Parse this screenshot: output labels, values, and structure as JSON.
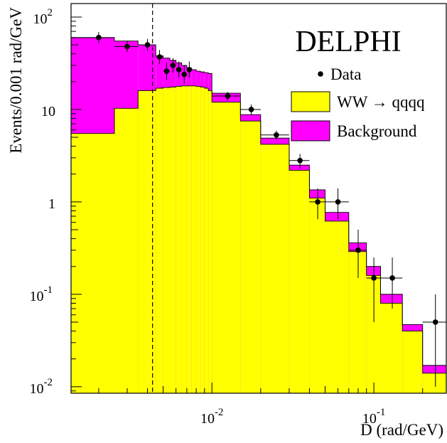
{
  "chart_data": {
    "type": "histogram",
    "experiment_label": "DELPHI",
    "xlabel": "D (rad/GeV)",
    "ylabel": "Events/0.001 rad/GeV",
    "x_scale": "log",
    "y_scale": "log",
    "xlim": [
      0.00135,
      0.28
    ],
    "ylim": [
      0.0085,
      140
    ],
    "grid": false,
    "legend_position": "top-right",
    "x_ticks": [
      {
        "value": 0.01,
        "base": "10",
        "exp": "-2"
      },
      {
        "value": 0.1,
        "base": "10",
        "exp": "-1"
      }
    ],
    "y_ticks": [
      {
        "value": 100,
        "base": "10",
        "exp": "2"
      },
      {
        "value": 10,
        "base": "10",
        "exp": ""
      },
      {
        "value": 1,
        "base": "1",
        "exp": ""
      },
      {
        "value": 0.1,
        "base": "10",
        "exp": "-1"
      },
      {
        "value": 0.01,
        "base": "10",
        "exp": "-2"
      }
    ],
    "cut_line_x": 0.0043,
    "bin_edges": [
      0.00135,
      0.0025,
      0.0035,
      0.0045,
      0.005,
      0.0055,
      0.006,
      0.0065,
      0.007,
      0.0075,
      0.008,
      0.0085,
      0.009,
      0.0095,
      0.01,
      0.015,
      0.02,
      0.03,
      0.04,
      0.05,
      0.07,
      0.09,
      0.11,
      0.15,
      0.2,
      0.28
    ],
    "series": [
      {
        "name": "WW → qqqq",
        "color": "#ffff00",
        "values": [
          5.5,
          10.3,
          16,
          17,
          17.3,
          17.5,
          17.8,
          18,
          18,
          18,
          17.8,
          17.5,
          17,
          16,
          12,
          7.5,
          4.2,
          2.2,
          1.1,
          0.62,
          0.29,
          0.16,
          0.08,
          0.04,
          0.014
        ]
      },
      {
        "name": "Background",
        "color": "#ff00ff",
        "values": [
          60,
          55,
          50,
          38,
          36,
          34,
          32,
          30,
          28,
          27,
          26,
          25.5,
          25,
          24.5,
          15,
          8.8,
          4.9,
          2.5,
          1.35,
          0.77,
          0.36,
          0.2,
          0.1,
          0.047,
          0.017
        ]
      }
    ],
    "data_points": {
      "name": "Data",
      "color": "#000000",
      "points": [
        {
          "x": 0.002,
          "y": 60,
          "xerr": [
            0.00065,
            0.0005
          ],
          "yerr": [
            8,
            9
          ]
        },
        {
          "x": 0.003,
          "y": 48,
          "xerr": [
            0.0005,
            0.0005
          ],
          "yerr": [
            6,
            7
          ]
        },
        {
          "x": 0.004,
          "y": 50,
          "xerr": [
            0.0005,
            0.0005
          ],
          "yerr": [
            7,
            8
          ]
        },
        {
          "x": 0.00475,
          "y": 37,
          "xerr": [
            0.00025,
            0.00025
          ],
          "yerr": [
            6,
            7
          ]
        },
        {
          "x": 0.00525,
          "y": 26,
          "xerr": [
            0.00025,
            0.00025
          ],
          "yerr": [
            5,
            6
          ]
        },
        {
          "x": 0.00575,
          "y": 30,
          "xerr": [
            0.00025,
            0.00025
          ],
          "yerr": [
            5,
            6
          ]
        },
        {
          "x": 0.00625,
          "y": 27,
          "xerr": [
            0.00025,
            0.00025
          ],
          "yerr": [
            5,
            6
          ]
        },
        {
          "x": 0.00675,
          "y": 24,
          "xerr": [
            0.00025,
            0.00025
          ],
          "yerr": [
            5,
            6
          ]
        },
        {
          "x": 0.00725,
          "y": 27,
          "xerr": [
            0.00025,
            0.00025
          ],
          "yerr": [
            5,
            6
          ]
        },
        {
          "x": 0.0125,
          "y": 14,
          "xerr": [
            0.0025,
            0.0025
          ],
          "yerr": [
            1.5,
            1.5
          ]
        },
        {
          "x": 0.0175,
          "y": 10,
          "xerr": [
            0.0025,
            0.0025
          ],
          "yerr": [
            1.2,
            1.3
          ]
        },
        {
          "x": 0.025,
          "y": 5.3,
          "xerr": [
            0.005,
            0.005
          ],
          "yerr": [
            0.6,
            0.6
          ]
        },
        {
          "x": 0.035,
          "y": 2.8,
          "xerr": [
            0.005,
            0.005
          ],
          "yerr": [
            0.5,
            0.5
          ]
        },
        {
          "x": 0.045,
          "y": 1.0,
          "xerr": [
            0.005,
            0.005
          ],
          "yerr": [
            0.35,
            0.4
          ]
        },
        {
          "x": 0.06,
          "y": 1.0,
          "xerr": [
            0.01,
            0.01
          ],
          "yerr": [
            0.35,
            0.4
          ]
        },
        {
          "x": 0.08,
          "y": 0.3,
          "xerr": [
            0.01,
            0.01
          ],
          "yerr": [
            0.15,
            0.2
          ]
        },
        {
          "x": 0.1,
          "y": 0.15,
          "xerr": [
            0.01,
            0.01
          ],
          "yerr": [
            0.1,
            0.1
          ]
        },
        {
          "x": 0.13,
          "y": 0.15,
          "xerr": [
            0.02,
            0.02
          ],
          "yerr": [
            0.08,
            0.1
          ]
        },
        {
          "x": 0.24,
          "y": 0.05,
          "xerr": [
            0.04,
            0.04
          ],
          "yerr": [
            0.04,
            0.05
          ]
        }
      ]
    },
    "legend": [
      {
        "label": "Data",
        "marker": "dot"
      },
      {
        "label": "WW → qqqq",
        "marker": "box",
        "color": "#ffff00"
      },
      {
        "label": "Background",
        "marker": "box",
        "color": "#ff00ff"
      }
    ]
  }
}
